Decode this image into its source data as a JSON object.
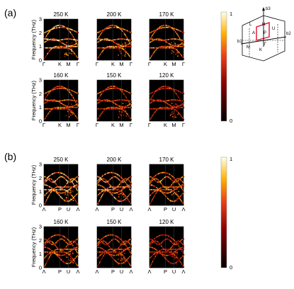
{
  "figure": {
    "panels": [
      {
        "label": "(a)",
        "kpath": [
          "Γ",
          "K",
          "M",
          "Γ"
        ],
        "ylabel": "Frequency (THz)",
        "yticks": [
          "0",
          "1",
          "2",
          "3"
        ],
        "colorbar": {
          "max": "1",
          "min": "0"
        },
        "temperatures": [
          "250 K",
          "200 K",
          "170 K",
          "160 K",
          "150 K",
          "120 K"
        ]
      },
      {
        "label": "(b)",
        "kpath": [
          "Λ",
          "P",
          "U",
          "Λ"
        ],
        "ylabel": "Frequency (THz)",
        "yticks": [
          "0",
          "1",
          "2",
          "3"
        ],
        "colorbar": {
          "max": "1",
          "min": "0"
        },
        "temperatures": [
          "250 K",
          "200 K",
          "170 K",
          "160 K",
          "150 K",
          "120 K"
        ]
      }
    ],
    "brillouin_zone": {
      "labels": [
        "b3",
        "b2",
        "b1",
        "Γ",
        "M",
        "K",
        "H",
        "L",
        "P",
        "A",
        "U"
      ]
    }
  },
  "chart_data": [
    {
      "type": "heatmap",
      "panel": "(a)",
      "xticks": [
        "Γ",
        "K",
        "M",
        "Γ"
      ],
      "ylabel": "Frequency (THz)",
      "ylim": [
        0,
        3
      ],
      "yticks": [
        0,
        1,
        2,
        3
      ],
      "colorbar_range": [
        0,
        1
      ],
      "colormap": "black-red-yellow-white",
      "subplots": [
        "250 K",
        "200 K",
        "170 K",
        "160 K",
        "150 K",
        "120 K"
      ]
    },
    {
      "type": "heatmap",
      "panel": "(b)",
      "xticks": [
        "Λ",
        "P",
        "U",
        "Λ"
      ],
      "ylabel": "Frequency (THz)",
      "ylim": [
        0,
        3
      ],
      "yticks": [
        0,
        1,
        2,
        3
      ],
      "colorbar_range": [
        0,
        1
      ],
      "colormap": "black-red-yellow-white",
      "subplots": [
        "250 K",
        "200 K",
        "170 K",
        "160 K",
        "150 K",
        "120 K"
      ]
    }
  ]
}
